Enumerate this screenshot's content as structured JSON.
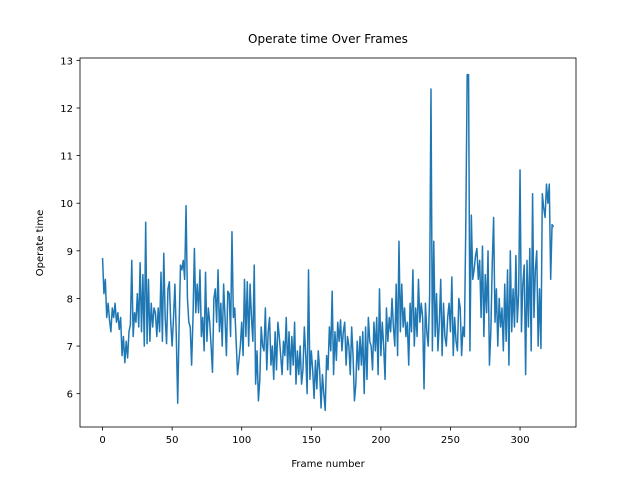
{
  "chart_data": {
    "type": "line",
    "title": "Operate time Over Frames",
    "x_label": "Frame number",
    "y_label": "Operate time",
    "x": [
      0,
      1,
      2,
      3,
      4,
      5,
      6,
      7,
      8,
      9,
      10,
      11,
      12,
      13,
      14,
      15,
      16,
      17,
      18,
      19,
      20,
      21,
      22,
      23,
      24,
      25,
      26,
      27,
      28,
      29,
      30,
      31,
      32,
      33,
      34,
      35,
      36,
      37,
      38,
      39,
      40,
      41,
      42,
      43,
      44,
      45,
      46,
      47,
      48,
      49,
      50,
      51,
      52,
      53,
      54,
      55,
      56,
      57,
      58,
      59,
      60,
      61,
      62,
      63,
      64,
      65,
      66,
      67,
      68,
      69,
      70,
      71,
      72,
      73,
      74,
      75,
      76,
      77,
      78,
      79,
      80,
      81,
      82,
      83,
      84,
      85,
      86,
      87,
      88,
      89,
      90,
      91,
      92,
      93,
      94,
      95,
      96,
      97,
      98,
      99,
      100,
      101,
      102,
      103,
      104,
      105,
      106,
      107,
      108,
      109,
      110,
      111,
      112,
      113,
      114,
      115,
      116,
      117,
      118,
      119,
      120,
      121,
      122,
      123,
      124,
      125,
      126,
      127,
      128,
      129,
      130,
      131,
      132,
      133,
      134,
      135,
      136,
      137,
      138,
      139,
      140,
      141,
      142,
      143,
      144,
      145,
      146,
      147,
      148,
      149,
      150,
      151,
      152,
      153,
      154,
      155,
      156,
      157,
      158,
      159,
      160,
      161,
      162,
      163,
      164,
      165,
      166,
      167,
      168,
      169,
      170,
      171,
      172,
      173,
      174,
      175,
      176,
      177,
      178,
      179,
      180,
      181,
      182,
      183,
      184,
      185,
      186,
      187,
      188,
      189,
      190,
      191,
      192,
      193,
      194,
      195,
      196,
      197,
      198,
      199,
      200,
      201,
      202,
      203,
      204,
      205,
      206,
      207,
      208,
      209,
      210,
      211,
      212,
      213,
      214,
      215,
      216,
      217,
      218,
      219,
      220,
      221,
      222,
      223,
      224,
      225,
      226,
      227,
      228,
      229,
      230,
      231,
      232,
      233,
      234,
      235,
      236,
      237,
      238,
      239,
      240,
      241,
      242,
      243,
      244,
      245,
      246,
      247,
      248,
      249,
      250,
      251,
      252,
      253,
      254,
      255,
      256,
      257,
      258,
      259,
      260,
      261,
      262,
      263,
      264,
      265,
      266,
      267,
      268,
      269,
      270,
      271,
      272,
      273,
      274,
      275,
      276,
      277,
      278,
      279,
      280,
      281,
      282,
      283,
      284,
      285,
      286,
      287,
      288,
      289,
      290,
      291,
      292,
      293,
      294,
      295,
      296,
      297,
      298,
      299,
      300,
      301,
      302,
      303,
      304,
      305,
      306,
      307,
      308,
      309,
      310,
      311,
      312,
      313,
      314,
      315,
      316,
      317,
      318,
      319,
      320,
      321,
      322,
      323,
      324
    ],
    "series": [
      {
        "color": "#1f77b4",
        "values": [
          8.85,
          8.1,
          8.4,
          7.6,
          7.9,
          7.55,
          7.3,
          7.8,
          7.6,
          7.9,
          7.5,
          7.7,
          7.35,
          7.6,
          6.8,
          7.2,
          6.65,
          7.1,
          6.75,
          7.3,
          7.45,
          8.8,
          7.2,
          7.7,
          7.5,
          8.1,
          7.4,
          8.75,
          7.3,
          8.5,
          7.0,
          9.6,
          7.05,
          8.4,
          7.1,
          7.9,
          7.4,
          7.8,
          7.7,
          7.2,
          7.8,
          7.3,
          8.55,
          7.1,
          8.95,
          7.6,
          7.05,
          8.2,
          8.35,
          7.5,
          7.0,
          7.6,
          8.3,
          7.2,
          5.8,
          7.4,
          8.7,
          8.6,
          8.8,
          8.4,
          9.95,
          8.0,
          7.5,
          7.4,
          6.6,
          7.6,
          9.05,
          7.7,
          8.3,
          7.7,
          8.6,
          7.2,
          7.6,
          6.9,
          8.55,
          7.1,
          7.8,
          7.5,
          7.0,
          6.45,
          8.0,
          8.2,
          7.5,
          8.6,
          7.3,
          7.9,
          7.0,
          8.3,
          7.6,
          6.8,
          8.15,
          8.1,
          7.2,
          9.4,
          7.6,
          7.8,
          7.1,
          6.4,
          6.7,
          7.0,
          7.5,
          6.8,
          8.4,
          7.2,
          8.35,
          7.0,
          8.3,
          7.6,
          7.1,
          8.7,
          6.2,
          6.9,
          5.85,
          6.3,
          7.4,
          7.0,
          6.9,
          7.8,
          6.5,
          7.3,
          7.6,
          6.6,
          7.0,
          6.3,
          7.3,
          6.5,
          7.5,
          7.2,
          6.8,
          6.4,
          7.1,
          6.8,
          7.6,
          6.5,
          7.3,
          6.4,
          7.2,
          6.6,
          7.5,
          6.2,
          6.9,
          6.4,
          7.0,
          6.2,
          6.5,
          7.4,
          6.8,
          6.0,
          8.6,
          6.3,
          6.9,
          6.5,
          5.9,
          6.7,
          6.1,
          6.9,
          6.5,
          5.7,
          6.4,
          6.0,
          5.65,
          6.8,
          6.5,
          7.4,
          6.9,
          8.15,
          6.4,
          7.3,
          6.7,
          7.5,
          7.1,
          7.55,
          6.9,
          7.3,
          7.5,
          6.6,
          7.2,
          7.0,
          6.4,
          7.4,
          6.8,
          5.85,
          6.2,
          7.1,
          6.5,
          7.2,
          6.6,
          7.3,
          6.0,
          7.4,
          6.3,
          7.6,
          7.1,
          7.0,
          6.5,
          7.5,
          6.9,
          7.6,
          6.4,
          8.2,
          6.8,
          7.5,
          7.0,
          6.3,
          7.8,
          7.1,
          7.6,
          7.3,
          8.0,
          7.4,
          7.0,
          8.3,
          6.8,
          9.2,
          7.3,
          8.3,
          7.4,
          7.8,
          7.2,
          7.5,
          6.6,
          7.9,
          7.3,
          8.6,
          7.0,
          7.8,
          7.2,
          8.4,
          7.5,
          7.9,
          7.6,
          6.1,
          7.9,
          7.3,
          7.0,
          8.0,
          12.4,
          6.9,
          9.2,
          7.2,
          8.1,
          6.9,
          7.5,
          8.4,
          6.8,
          7.9,
          7.2,
          7.0,
          7.6,
          7.9,
          7.3,
          8.45,
          6.8,
          7.6,
          7.1,
          6.9,
          8.0,
          7.8,
          6.8,
          7.4,
          7.2,
          9.5,
          12.7,
          12.7,
          6.9,
          9.75,
          8.4,
          8.6,
          8.9,
          9.05,
          8.4,
          8.8,
          7.6,
          9.1,
          7.2,
          8.5,
          7.7,
          9.0,
          6.6,
          7.3,
          8.7,
          9.7,
          7.5,
          8.2,
          7.0,
          8.0,
          7.4,
          7.8,
          6.9,
          8.3,
          7.1,
          8.6,
          6.6,
          9.0,
          7.3,
          8.2,
          7.4,
          8.9,
          7.5,
          8.1,
          10.7,
          7.3,
          8.3,
          8.7,
          6.4,
          8.8,
          7.4,
          9.05,
          6.9,
          10.2,
          7.6,
          8.6,
          9.0,
          7.0,
          8.2,
          6.95,
          10.2,
          9.9,
          9.7,
          10.4,
          10.0,
          10.4,
          8.4,
          9.55,
          9.5
        ]
      }
    ],
    "xlim": [
      -16.2,
      340.2
    ],
    "ylim": [
      5.3,
      13.05
    ],
    "xticks": [
      0,
      50,
      100,
      150,
      200,
      250,
      300
    ],
    "yticks": [
      6,
      7,
      8,
      9,
      10,
      11,
      12,
      13
    ]
  }
}
